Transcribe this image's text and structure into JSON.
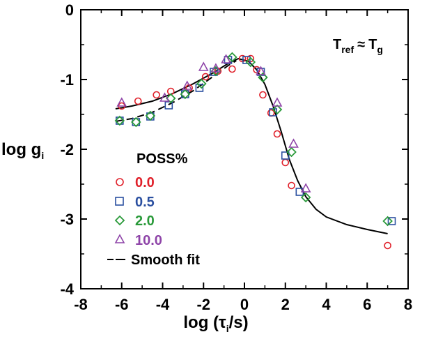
{
  "chart_data": {
    "type": "scatter",
    "xlabel": "log (τ",
    "xlabel_sub": "i",
    "xlabel_tail": "/s)",
    "ylabel": "log g",
    "ylabel_sub": "i",
    "xlim": [
      -8,
      8
    ],
    "ylim": [
      -4,
      0
    ],
    "x_ticks": [
      -8,
      -6,
      -4,
      -2,
      0,
      2,
      4,
      6,
      8
    ],
    "x_tick_labels": [
      "-8",
      "-6",
      "-4",
      "-2",
      "0",
      "2",
      "4",
      "6",
      "8"
    ],
    "y_ticks": [
      0,
      -1,
      -2,
      -3,
      -4
    ],
    "y_tick_labels": [
      "0",
      "-1",
      "-2",
      "-3",
      "-4"
    ],
    "grid": false,
    "annotation": {
      "T_main": "T",
      "T_sub": "ref",
      "approx": "≈",
      "T2_main": "T",
      "T2_sub": "g"
    },
    "legend_title": "POSS%",
    "legend_position": "lower-left",
    "series": [
      {
        "name": "0.0",
        "marker": "circle",
        "color": "#e0202a",
        "x": [
          -6.0,
          -5.2,
          -4.3,
          -3.6,
          -2.7,
          -1.9,
          -1.3,
          -0.6,
          -0.1,
          0.3,
          0.6,
          0.9,
          1.3,
          1.6,
          2.0,
          2.3,
          7.0
        ],
        "y": [
          -1.38,
          -1.31,
          -1.22,
          -1.17,
          -1.12,
          -0.96,
          -0.88,
          -0.85,
          -0.7,
          -0.7,
          -0.86,
          -1.22,
          -1.48,
          -1.78,
          -2.19,
          -2.52,
          -3.38
        ]
      },
      {
        "name": "0.5",
        "marker": "square",
        "color": "#2a4fa0",
        "x": [
          -6.1,
          -5.3,
          -4.6,
          -3.7,
          -2.9,
          -2.2,
          -1.5,
          -0.8,
          0.1,
          0.8,
          1.4,
          2.0,
          2.7,
          7.2
        ],
        "y": [
          -1.59,
          -1.61,
          -1.53,
          -1.37,
          -1.21,
          -1.12,
          -0.89,
          -0.72,
          -0.72,
          -0.89,
          -1.47,
          -2.09,
          -2.61,
          -3.03
        ]
      },
      {
        "name": "2.0",
        "marker": "diamond",
        "color": "#2a9a3a",
        "x": [
          -6.1,
          -5.3,
          -4.6,
          -3.6,
          -2.9,
          -2.1,
          -1.4,
          -0.6,
          0.3,
          0.9,
          1.6,
          2.3,
          3.0,
          7.0
        ],
        "y": [
          -1.59,
          -1.61,
          -1.52,
          -1.27,
          -1.21,
          -1.06,
          -0.88,
          -0.68,
          -0.75,
          -0.97,
          -1.43,
          -2.04,
          -2.69,
          -3.03
        ]
      },
      {
        "name": "10.0",
        "marker": "triangle",
        "color": "#8e44a8",
        "x": [
          -6.0,
          -3.9,
          -2.8,
          -2.0,
          -1.4,
          -0.9,
          0.8,
          1.6,
          2.4,
          3.0
        ],
        "y": [
          -1.33,
          -1.26,
          -1.09,
          -0.82,
          -0.84,
          -0.71,
          -0.88,
          -1.33,
          -1.92,
          -2.56
        ]
      }
    ],
    "fit": {
      "name": "Smooth fit",
      "solid": {
        "x": [
          -6.3,
          -5.5,
          -4.5,
          -3.5,
          -2.5,
          -1.5,
          -0.8,
          -0.3,
          0.2,
          0.6,
          1.0,
          1.4,
          1.8,
          2.2,
          2.6,
          3.0,
          3.5,
          4.0,
          5.0,
          6.0,
          7.0
        ],
        "y": [
          -1.42,
          -1.38,
          -1.31,
          -1.2,
          -1.06,
          -0.9,
          -0.77,
          -0.7,
          -0.74,
          -0.86,
          -1.07,
          -1.38,
          -1.75,
          -2.15,
          -2.45,
          -2.68,
          -2.86,
          -2.97,
          -3.08,
          -3.15,
          -3.21
        ]
      },
      "dashed": {
        "x": [
          -6.3,
          -5.5,
          -4.5,
          -3.5,
          -2.5,
          -1.5,
          -0.8,
          -0.4
        ],
        "y": [
          -1.6,
          -1.56,
          -1.47,
          -1.33,
          -1.16,
          -0.95,
          -0.8,
          -0.73
        ]
      }
    }
  }
}
